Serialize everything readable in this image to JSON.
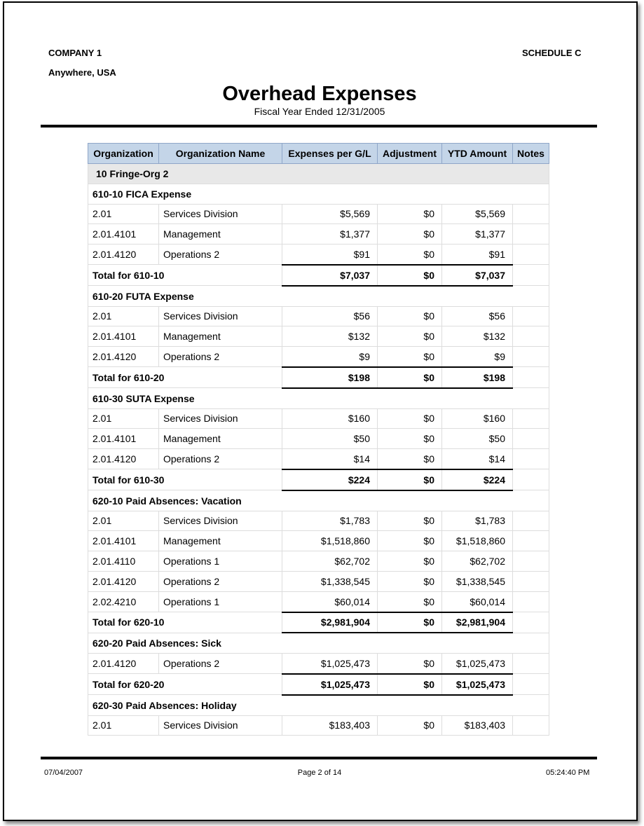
{
  "header": {
    "company": "COMPANY 1",
    "location": "Anywhere, USA",
    "schedule": "SCHEDULE C",
    "title": "Overhead Expenses",
    "subtitle": "Fiscal Year Ended 12/31/2005"
  },
  "table": {
    "columns": [
      "Organization",
      "Organization Name",
      "Expenses per G/L",
      "Adjustment",
      "YTD Amount",
      "Notes"
    ],
    "group": "10 Fringe-Org 2",
    "sections": [
      {
        "title": "610-10 FICA Expense",
        "rows": [
          [
            "2.01",
            "Services Division",
            "$5,569",
            "$0",
            "$5,569"
          ],
          [
            "2.01.4101",
            "Management",
            "$1,377",
            "$0",
            "$1,377"
          ],
          [
            "2.01.4120",
            "Operations 2",
            "$91",
            "$0",
            "$91"
          ]
        ],
        "total": [
          "Total for 610-10",
          "$7,037",
          "$0",
          "$7,037"
        ]
      },
      {
        "title": "610-20 FUTA Expense",
        "rows": [
          [
            "2.01",
            "Services Division",
            "$56",
            "$0",
            "$56"
          ],
          [
            "2.01.4101",
            "Management",
            "$132",
            "$0",
            "$132"
          ],
          [
            "2.01.4120",
            "Operations 2",
            "$9",
            "$0",
            "$9"
          ]
        ],
        "total": [
          "Total for 610-20",
          "$198",
          "$0",
          "$198"
        ]
      },
      {
        "title": "610-30 SUTA Expense",
        "rows": [
          [
            "2.01",
            "Services Division",
            "$160",
            "$0",
            "$160"
          ],
          [
            "2.01.4101",
            "Management",
            "$50",
            "$0",
            "$50"
          ],
          [
            "2.01.4120",
            "Operations 2",
            "$14",
            "$0",
            "$14"
          ]
        ],
        "total": [
          "Total for 610-30",
          "$224",
          "$0",
          "$224"
        ]
      },
      {
        "title": "620-10 Paid Absences: Vacation",
        "rows": [
          [
            "2.01",
            "Services Division",
            "$1,783",
            "$0",
            "$1,783"
          ],
          [
            "2.01.4101",
            "Management",
            "$1,518,860",
            "$0",
            "$1,518,860"
          ],
          [
            "2.01.4110",
            "Operations 1",
            "$62,702",
            "$0",
            "$62,702"
          ],
          [
            "2.01.4120",
            "Operations 2",
            "$1,338,545",
            "$0",
            "$1,338,545"
          ],
          [
            "2.02.4210",
            "Operations 1",
            "$60,014",
            "$0",
            "$60,014"
          ]
        ],
        "total": [
          "Total for 620-10",
          "$2,981,904",
          "$0",
          "$2,981,904"
        ]
      },
      {
        "title": "620-20 Paid Absences: Sick",
        "rows": [
          [
            "2.01.4120",
            "Operations 2",
            "$1,025,473",
            "$0",
            "$1,025,473"
          ]
        ],
        "total": [
          "Total for 620-20",
          "$1,025,473",
          "$0",
          "$1,025,473"
        ]
      },
      {
        "title": "620-30 Paid Absences: Holiday",
        "rows": [
          [
            "2.01",
            "Services Division",
            "$183,403",
            "$0",
            "$183,403"
          ]
        ]
      }
    ]
  },
  "footer": {
    "date": "07/04/2007",
    "page": "Page 2 of 14",
    "time": "05:24:40 PM"
  }
}
